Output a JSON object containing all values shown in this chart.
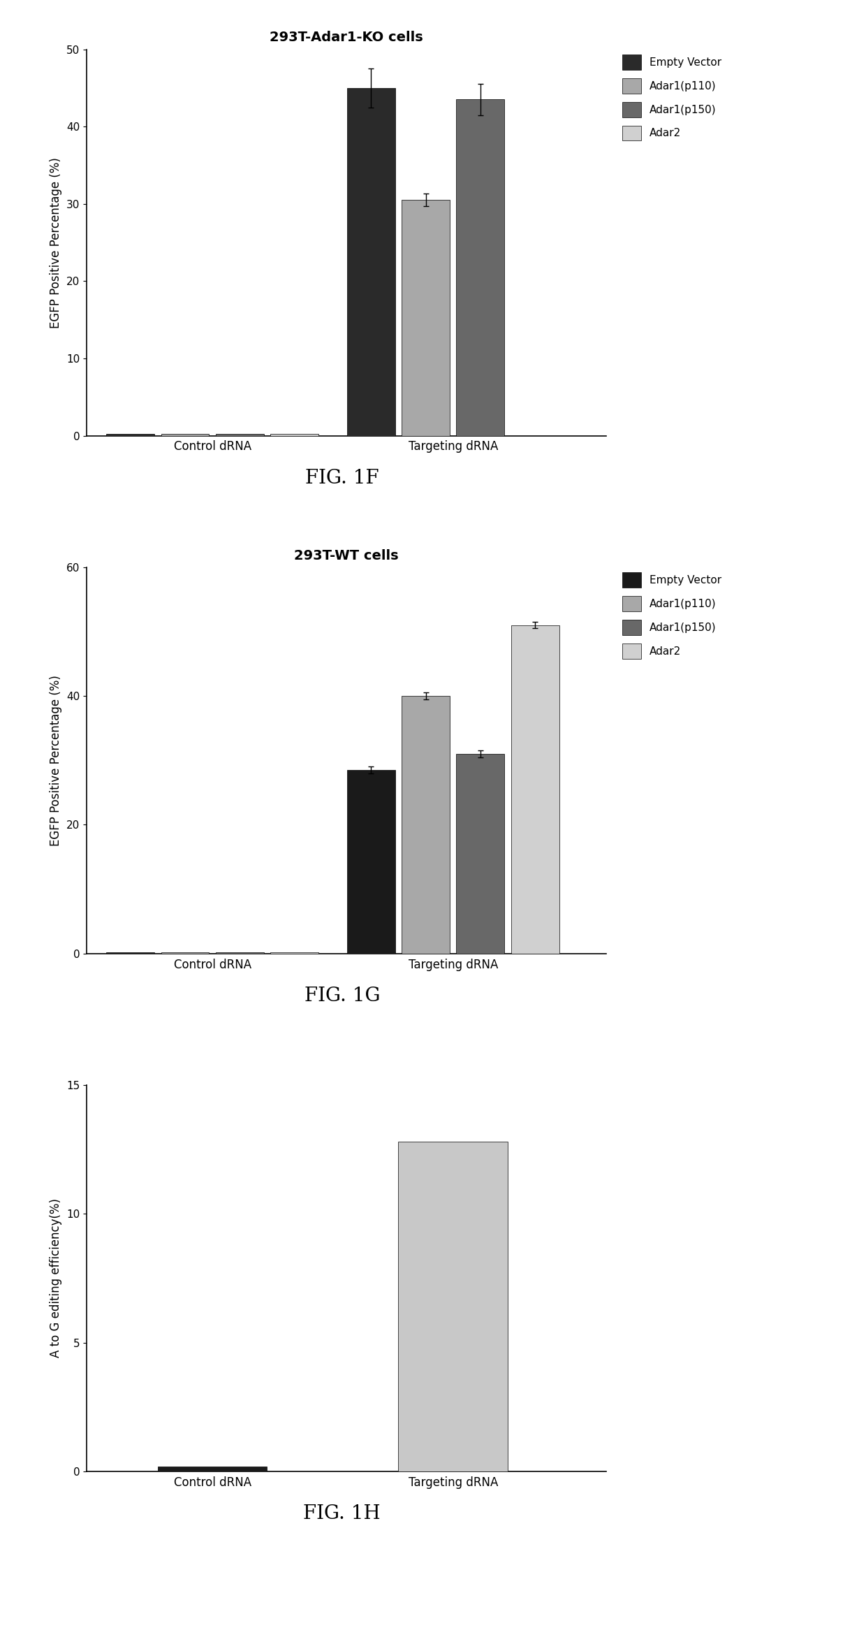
{
  "fig1f": {
    "title": "293T-Adar1-KO cells",
    "ylabel": "EGFP Positive Percentage (%)",
    "ylim": [
      0,
      50
    ],
    "yticks": [
      0,
      10,
      20,
      30,
      40,
      50
    ],
    "groups": [
      "Control dRNA",
      "Targeting dRNA"
    ],
    "series": [
      "Empty Vector",
      "Adar1(p110)",
      "Adar1(p150)",
      "Adar2"
    ],
    "colors": [
      "#2a2a2a",
      "#a8a8a8",
      "#686868",
      "#d0d0d0"
    ],
    "values": [
      [
        0.2,
        0.2,
        0.2,
        0.2
      ],
      [
        45.0,
        30.5,
        43.5,
        0.0
      ]
    ],
    "errors": [
      [
        0.0,
        0.0,
        0.0,
        0.0
      ],
      [
        2.5,
        0.8,
        2.0,
        0.0
      ]
    ],
    "fig_label": "FIG. 1F"
  },
  "fig1g": {
    "title": "293T-WT cells",
    "ylabel": "EGFP Positive Percentage (%)",
    "ylim": [
      0,
      60
    ],
    "yticks": [
      0,
      20,
      40,
      60
    ],
    "groups": [
      "Control dRNA",
      "Targeting dRNA"
    ],
    "series": [
      "Empty Vector",
      "Adar1(p110)",
      "Adar1(p150)",
      "Adar2"
    ],
    "colors": [
      "#1a1a1a",
      "#a8a8a8",
      "#686868",
      "#d0d0d0"
    ],
    "values": [
      [
        0.2,
        0.2,
        0.2,
        0.2
      ],
      [
        28.5,
        40.0,
        31.0,
        51.0
      ]
    ],
    "errors": [
      [
        0.1,
        0.1,
        0.1,
        0.1
      ],
      [
        0.5,
        0.5,
        0.5,
        0.5
      ]
    ],
    "fig_label": "FIG. 1G"
  },
  "fig1h": {
    "ylabel": "A to G editing efficiency(%)",
    "ylim": [
      0,
      15
    ],
    "yticks": [
      0,
      5,
      10,
      15
    ],
    "groups": [
      "Control dRNA",
      "Targeting dRNA"
    ],
    "colors": [
      "#1a1a1a",
      "#c8c8c8"
    ],
    "values": [
      0.2,
      12.8
    ],
    "fig_label": "FIG. 1H"
  },
  "background_color": "#ffffff",
  "title_fontsize": 14,
  "label_fontsize": 12,
  "tick_fontsize": 11,
  "legend_fontsize": 11,
  "fig_label_fontsize": 20
}
